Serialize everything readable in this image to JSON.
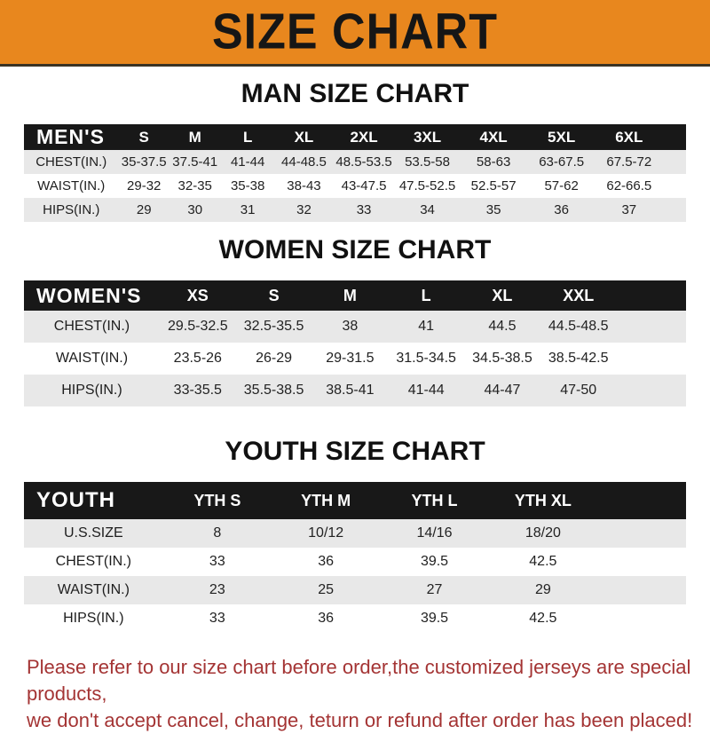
{
  "banner": {
    "title": "SIZE CHART",
    "bg_color": "#e8871e",
    "text_color": "#161616"
  },
  "sections": [
    {
      "id": "men",
      "heading": "MAN SIZE CHART",
      "header_label": "MEN'S",
      "columns": [
        "S",
        "M",
        "L",
        "XL",
        "2XL",
        "3XL",
        "4XL",
        "5XL",
        "6XL"
      ],
      "rows": [
        {
          "label": "CHEST(IN.)",
          "values": [
            "35-37.5",
            "37.5-41",
            "41-44",
            "44-48.5",
            "48.5-53.5",
            "53.5-58",
            "58-63",
            "63-67.5",
            "67.5-72"
          ]
        },
        {
          "label": "WAIST(IN.)",
          "values": [
            "29-32",
            "32-35",
            "35-38",
            "38-43",
            "43-47.5",
            "47.5-52.5",
            "52.5-57",
            "57-62",
            "62-66.5"
          ]
        },
        {
          "label": "HIPS(IN.)",
          "values": [
            "29",
            "30",
            "31",
            "32",
            "33",
            "34",
            "35",
            "36",
            "37"
          ]
        }
      ]
    },
    {
      "id": "women",
      "heading": "WOMEN SIZE CHART",
      "header_label": "WOMEN'S",
      "columns": [
        "XS",
        "S",
        "M",
        "L",
        "XL",
        "XXL"
      ],
      "rows": [
        {
          "label": "CHEST(IN.)",
          "values": [
            "29.5-32.5",
            "32.5-35.5",
            "38",
            "41",
            "44.5",
            "44.5-48.5"
          ]
        },
        {
          "label": "WAIST(IN.)",
          "values": [
            "23.5-26",
            "26-29",
            "29-31.5",
            "31.5-34.5",
            "34.5-38.5",
            "38.5-42.5"
          ]
        },
        {
          "label": "HIPS(IN.)",
          "values": [
            "33-35.5",
            "35.5-38.5",
            "38.5-41",
            "41-44",
            "44-47",
            "47-50"
          ]
        }
      ]
    },
    {
      "id": "youth",
      "heading": "YOUTH SIZE CHART",
      "header_label": "YOUTH",
      "columns": [
        "YTH S",
        "YTH M",
        "YTH L",
        "YTH XL"
      ],
      "rows": [
        {
          "label": "U.S.SIZE",
          "values": [
            "8",
            "10/12",
            "14/16",
            "18/20"
          ]
        },
        {
          "label": "CHEST(IN.)",
          "values": [
            "33",
            "36",
            "39.5",
            "42.5"
          ]
        },
        {
          "label": "WAIST(IN.)",
          "values": [
            "23",
            "25",
            "27",
            "29"
          ]
        },
        {
          "label": "HIPS(IN.)",
          "values": [
            "33",
            "36",
            "39.5",
            "42.5"
          ]
        }
      ]
    }
  ],
  "footer": {
    "line1": "Please refer to our size chart before order,the customized jerseys are special products,",
    "line2": "we don't accept cancel, change, teturn or refund after order has been placed!",
    "text_color": "#a43434"
  },
  "colors": {
    "header_bar": "#181818",
    "header_text": "#ffffff",
    "row_stripe": "#e8e8e8",
    "body_text": "#222222"
  }
}
